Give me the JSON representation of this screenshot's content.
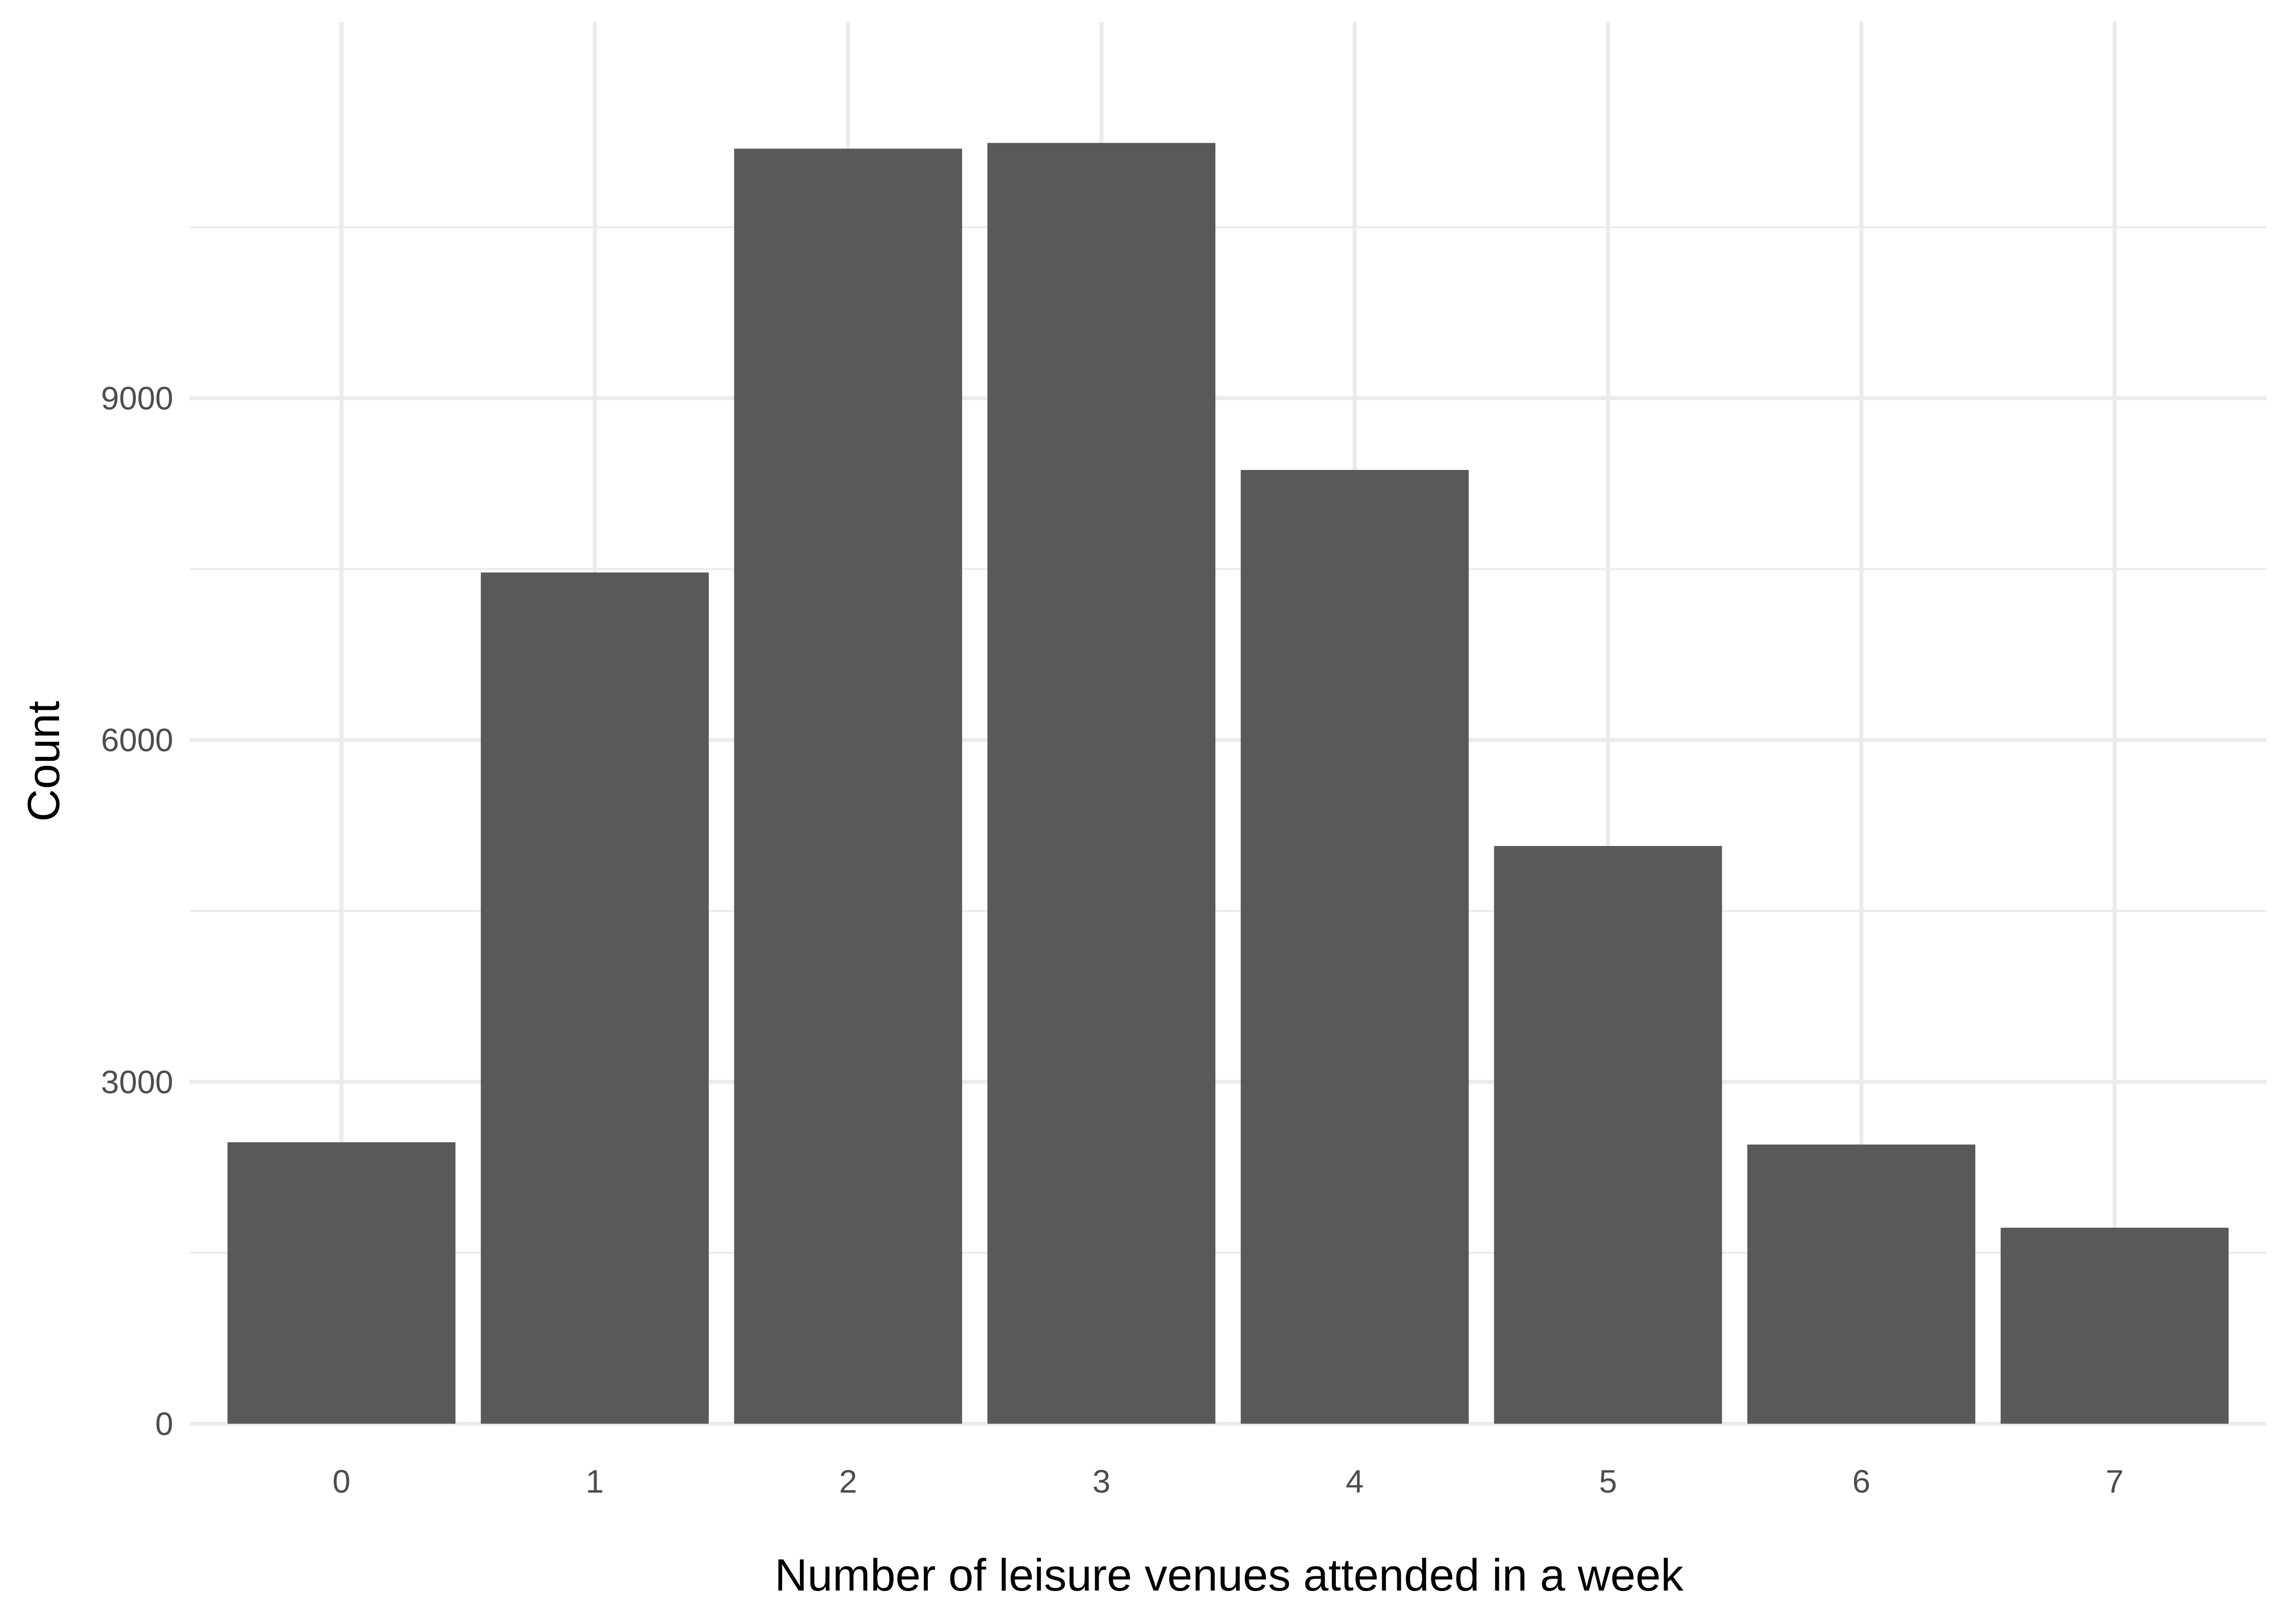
{
  "chart_data": {
    "type": "bar",
    "title": "",
    "xlabel": "Number of leisure venues attended in a week",
    "ylabel": "Count",
    "categories": [
      "0",
      "1",
      "2",
      "3",
      "4",
      "5",
      "6",
      "7"
    ],
    "values": [
      2470,
      7470,
      11190,
      11240,
      8370,
      5070,
      2450,
      1720
    ],
    "ylim": [
      0,
      12300
    ],
    "yticks": [
      0,
      3000,
      6000,
      9000
    ],
    "yticklabels": [
      "0",
      "3000",
      "6000",
      "9000"
    ],
    "grid": true,
    "legend": "none",
    "colors": {
      "bar": "#595959",
      "grid": "#ebebeb",
      "background": "#ffffff"
    }
  }
}
